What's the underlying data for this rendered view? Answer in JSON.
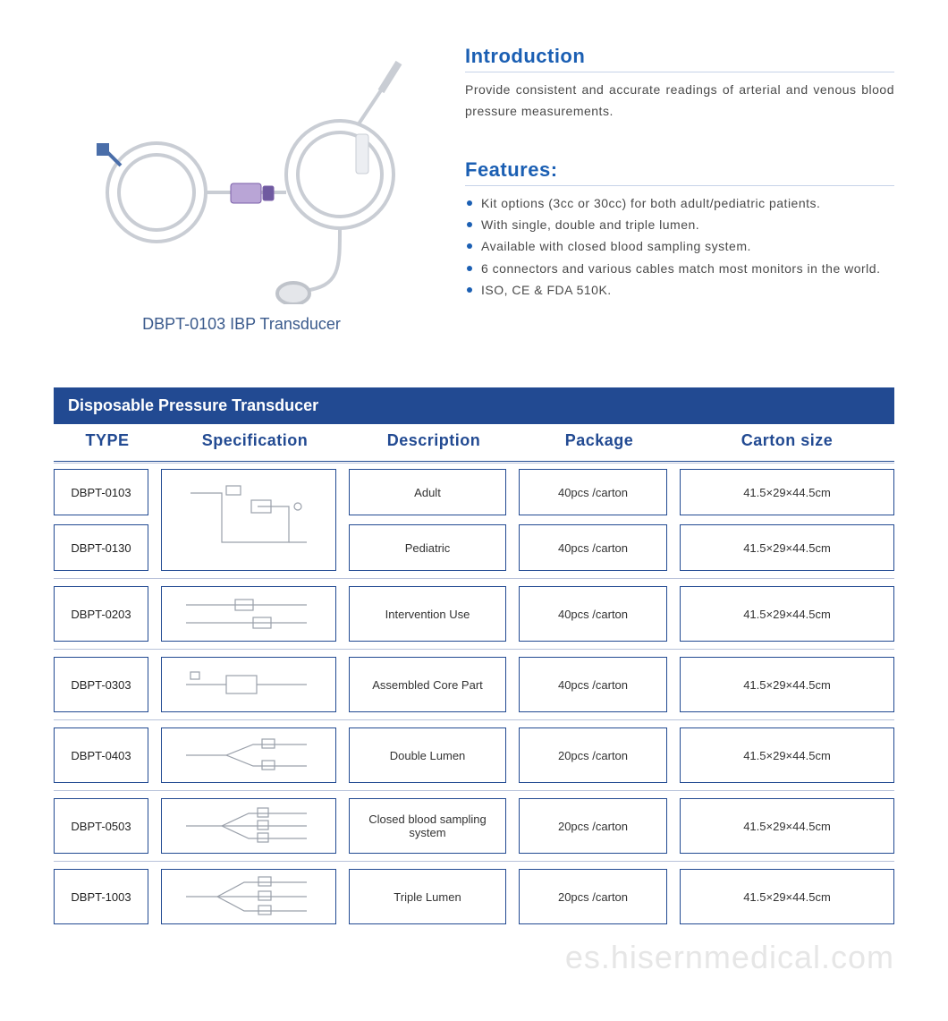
{
  "colors": {
    "primary": "#1b5fb3",
    "header_bg": "#224a92",
    "border": "#224a92",
    "divider": "#b8c2da",
    "text": "#4a4a4a",
    "caption": "#3a5a8c",
    "watermark": "#e6e6e6"
  },
  "product": {
    "caption": "DBPT-0103 IBP Transducer"
  },
  "intro": {
    "title": "Introduction",
    "text": "Provide consistent and accurate readings of arterial and venous blood pressure measurements."
  },
  "features": {
    "title": "Features:",
    "items": [
      "Kit options (3cc or 30cc) for both adult/pediatric patients.",
      "With single, double and triple lumen.",
      "Available with closed blood sampling system.",
      "6 connectors and various cables match most monitors in the world.",
      "ISO, CE & FDA 510K."
    ]
  },
  "table": {
    "title": "Disposable Pressure Transducer",
    "columns": [
      "TYPE",
      "Specification",
      "Description",
      "Package",
      "Carton  size"
    ],
    "groups": [
      {
        "types": [
          "DBPT-0103",
          "DBPT-0130"
        ],
        "spec_kind": "loop",
        "rows": [
          {
            "description": "Adult",
            "package": "40pcs /carton",
            "carton": "41.5×29×44.5cm"
          },
          {
            "description": "Pediatric",
            "package": "40pcs /carton",
            "carton": "41.5×29×44.5cm"
          }
        ]
      },
      {
        "types": [
          "DBPT-0203"
        ],
        "spec_kind": "double-short",
        "rows": [
          {
            "description": "Intervention Use",
            "package": "40pcs /carton",
            "carton": "41.5×29×44.5cm"
          }
        ]
      },
      {
        "types": [
          "DBPT-0303"
        ],
        "spec_kind": "single-block",
        "rows": [
          {
            "description": "Assembled Core Part",
            "package": "40pcs /carton",
            "carton": "41.5×29×44.5cm"
          }
        ]
      },
      {
        "types": [
          "DBPT-0403"
        ],
        "spec_kind": "double-lumen",
        "rows": [
          {
            "description": "Double Lumen",
            "package": "20pcs /carton",
            "carton": "41.5×29×44.5cm"
          }
        ]
      },
      {
        "types": [
          "DBPT-0503"
        ],
        "spec_kind": "closed-sampling",
        "rows": [
          {
            "description": "Closed blood sampling system",
            "package": "20pcs /carton",
            "carton": "41.5×29×44.5cm"
          }
        ]
      },
      {
        "types": [
          "DBPT-1003"
        ],
        "spec_kind": "triple-lumen",
        "rows": [
          {
            "description": "Triple Lumen",
            "package": "20pcs /carton",
            "carton": "41.5×29×44.5cm"
          }
        ]
      }
    ]
  },
  "watermark": "es.hisernmedical.com"
}
